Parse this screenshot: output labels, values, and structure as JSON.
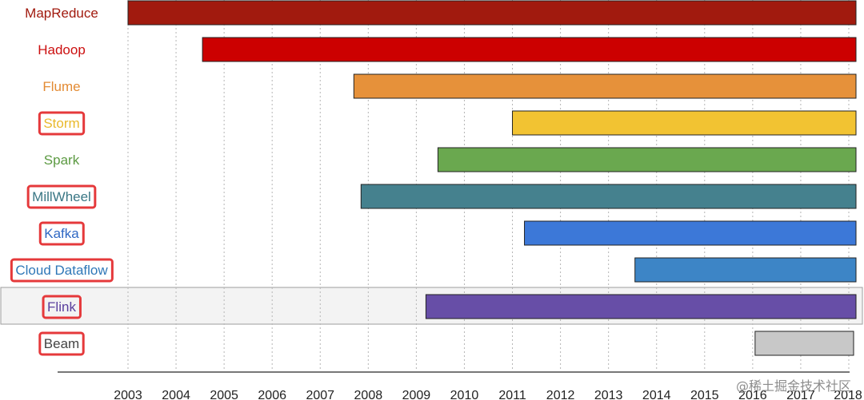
{
  "chart_data": {
    "type": "bar",
    "orientation": "horizontal-timeline",
    "xlim": [
      2003,
      2018.15
    ],
    "x_ticks": [
      "2003",
      "2004",
      "2005",
      "2006",
      "2007",
      "2008",
      "2009",
      "2010",
      "2011",
      "2012",
      "2013",
      "2014",
      "2015",
      "2016",
      "2017",
      "2018"
    ],
    "grid": "vertical-dotted",
    "series": [
      {
        "name": "MapReduce",
        "start": 2003.0,
        "end": 2018.15,
        "color": "#a11a0e",
        "label_color": "#a11a0e",
        "boxed": false
      },
      {
        "name": "Hadoop",
        "start": 2004.55,
        "end": 2018.15,
        "color": "#cc0000",
        "label_color": "#cc1010",
        "boxed": false
      },
      {
        "name": "Flume",
        "start": 2007.7,
        "end": 2018.15,
        "color": "#e6913a",
        "label_color": "#e38b34",
        "boxed": false
      },
      {
        "name": "Storm",
        "start": 2011.0,
        "end": 2018.15,
        "color": "#f2c332",
        "label_color": "#e9b92c",
        "boxed": true
      },
      {
        "name": "Spark",
        "start": 2009.45,
        "end": 2018.15,
        "color": "#6aa84f",
        "label_color": "#5c9a42",
        "boxed": false
      },
      {
        "name": "MillWheel",
        "start": 2007.85,
        "end": 2018.15,
        "color": "#45818e",
        "label_color": "#3a7785",
        "boxed": true
      },
      {
        "name": "Kafka",
        "start": 2011.25,
        "end": 2018.15,
        "color": "#3c78d8",
        "label_color": "#2f68c4",
        "boxed": true
      },
      {
        "name": "Cloud Dataflow",
        "start": 2013.55,
        "end": 2018.15,
        "color": "#3d85c6",
        "label_color": "#2f78b8",
        "boxed": true
      },
      {
        "name": "Flink",
        "start": 2009.2,
        "end": 2018.15,
        "color": "#674ea7",
        "label_color": "#5a3f9e",
        "boxed": true,
        "row_highlight": true
      },
      {
        "name": "Beam",
        "start": 2016.05,
        "end": 2018.1,
        "color": "#c8c8c8",
        "label_color": "#444444",
        "boxed": true
      }
    ]
  },
  "watermark_text": "@稀土掘金技术社区"
}
